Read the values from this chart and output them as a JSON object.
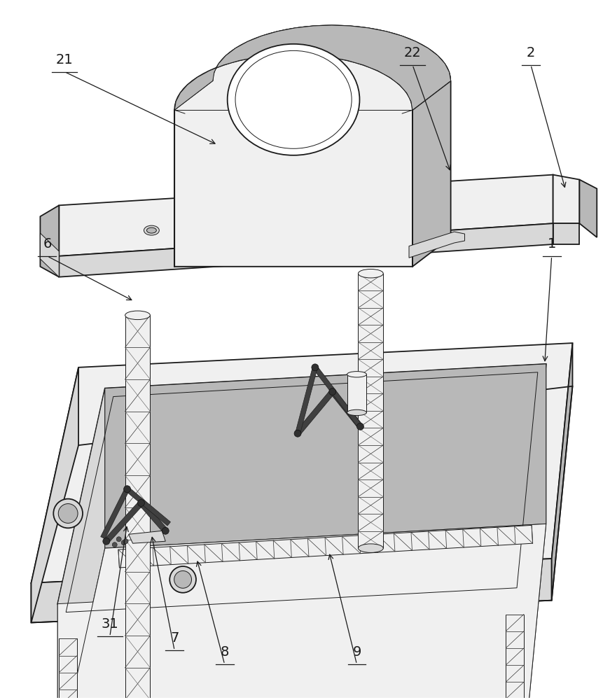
{
  "background_color": "#ffffff",
  "line_color": "#1a1a1a",
  "label_color": "#1a1a1a",
  "figsize": [
    8.61,
    10.0
  ],
  "dpi": 100,
  "lw_main": 1.3,
  "lw_thin": 0.7,
  "c_light": "#f0f0f0",
  "c_mid": "#d8d8d8",
  "c_dark": "#b8b8b8",
  "c_darker": "#989898",
  "c_white": "#ffffff"
}
